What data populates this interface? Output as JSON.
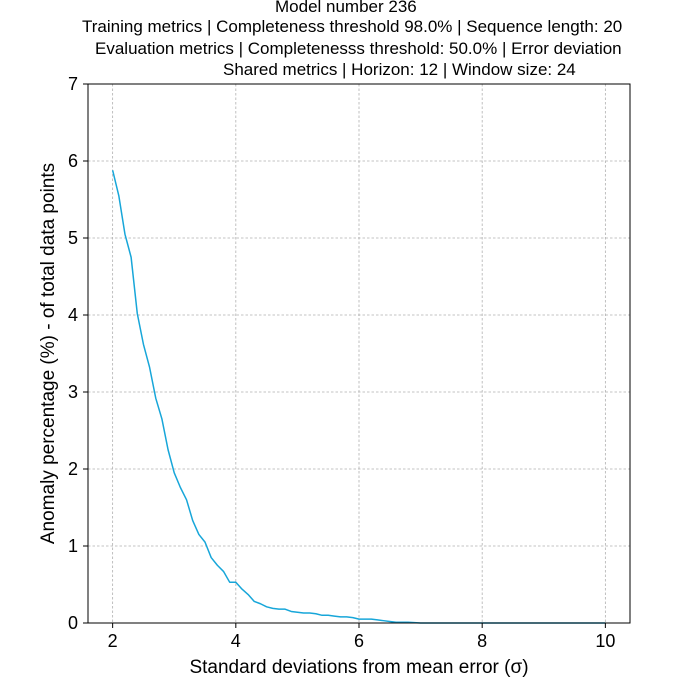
{
  "chart_data": {
    "type": "line",
    "title": "Model number 236",
    "subtitle_lines": [
      "Training metrics | Completeness threshold 98.0% | Sequence length: 20",
      "Evaluation metrics | Completenesss threshold: 50.0% | Error deviation",
      "Shared metrics | Horizon: 12 | Window size: 24"
    ],
    "xlabel": "Standard deviations from mean error (σ)",
    "ylabel": "Anomaly percentage (%) - of total data points",
    "xlim": [
      1.6,
      10.4
    ],
    "ylim": [
      0,
      7
    ],
    "xticks": [
      2,
      4,
      6,
      8,
      10
    ],
    "yticks": [
      0,
      1,
      2,
      3,
      4,
      5,
      6,
      7
    ],
    "grid": true,
    "series": [
      {
        "name": "anomaly_percentage",
        "color": "#17a6d9",
        "x": [
          2.0,
          2.1,
          2.2,
          2.3,
          2.4,
          2.5,
          2.6,
          2.7,
          2.8,
          2.9,
          3.0,
          3.1,
          3.2,
          3.3,
          3.4,
          3.5,
          3.6,
          3.7,
          3.8,
          3.9,
          4.0,
          4.1,
          4.2,
          4.3,
          4.4,
          4.5,
          4.6,
          4.7,
          4.8,
          4.9,
          5.0,
          5.1,
          5.2,
          5.3,
          5.4,
          5.5,
          5.6,
          5.7,
          5.8,
          5.9,
          6.0,
          6.1,
          6.2,
          6.3,
          6.4,
          6.5,
          6.6,
          6.7,
          6.8,
          7.0,
          7.5,
          8.0,
          8.5,
          9.0,
          9.5,
          10.0
        ],
        "values": [
          5.88,
          5.55,
          5.05,
          4.75,
          4.02,
          3.62,
          3.32,
          2.92,
          2.65,
          2.25,
          1.95,
          1.76,
          1.6,
          1.33,
          1.15,
          1.05,
          0.85,
          0.75,
          0.67,
          0.53,
          0.53,
          0.44,
          0.37,
          0.28,
          0.25,
          0.21,
          0.19,
          0.18,
          0.18,
          0.15,
          0.14,
          0.13,
          0.13,
          0.12,
          0.1,
          0.1,
          0.09,
          0.08,
          0.08,
          0.07,
          0.05,
          0.05,
          0.05,
          0.04,
          0.03,
          0.02,
          0.01,
          0.01,
          0.01,
          0.0,
          0.0,
          0.0,
          0.0,
          0.0,
          0.0,
          0.0
        ]
      }
    ]
  }
}
